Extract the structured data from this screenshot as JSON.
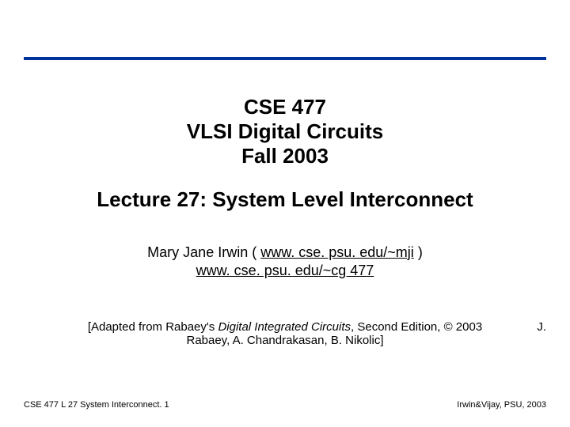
{
  "rule": {
    "color": "#003399"
  },
  "course": {
    "line1": "CSE 477",
    "line2": "VLSI Digital Circuits",
    "line3": "Fall 2003"
  },
  "lecture_title": "Lecture 27: System Level Interconnect",
  "author": {
    "prefix": "Mary Jane Irwin ( ",
    "link1": "www. cse. psu. edu/~mji",
    "mid": " )",
    "link2": "www. cse. psu. edu/~cg 477"
  },
  "adapted": {
    "pre": "[Adapted from Rabaey's ",
    "ital": "Digital Integrated Circuits",
    "post1": ", Second Edition, © 2003",
    "post2": "Rabaey, A. Chandrakasan, B. Nikolic]",
    "j": "J."
  },
  "footer": {
    "left": "CSE 477  L 27 System Interconnect. 1",
    "right": "Irwin&Vijay, PSU, 2003"
  },
  "fonts": {
    "heading_size": 26,
    "body_size": 18,
    "adapted_size": 15,
    "footer_size": 11
  },
  "colors": {
    "text": "#000000",
    "background": "#ffffff",
    "rule": "#003399"
  }
}
